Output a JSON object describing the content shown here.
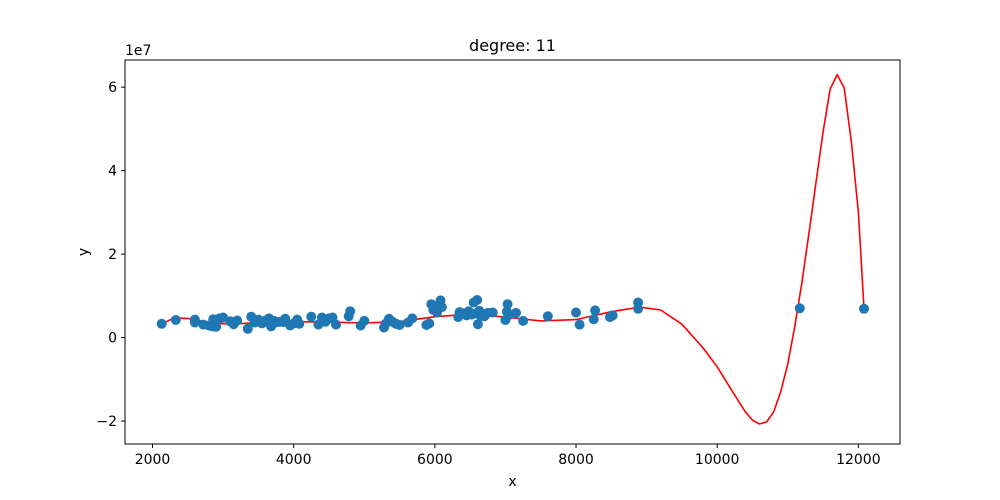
{
  "chart_data": {
    "type": "scatter",
    "title": "degree: 11",
    "xlabel": "x",
    "ylabel": "y",
    "y_multiplier_label": "1e7",
    "xlim": [
      1610,
      12590
    ],
    "ylim": [
      -25500000,
      66500000
    ],
    "x_ticks": [
      2000,
      4000,
      6000,
      8000,
      10000,
      12000
    ],
    "x_tick_labels": [
      "2000",
      "4000",
      "6000",
      "8000",
      "10000",
      "12000"
    ],
    "y_ticks": [
      -20000000,
      0,
      20000000,
      40000000,
      60000000
    ],
    "y_tick_labels": [
      "−2",
      "0",
      "2",
      "4",
      "6"
    ],
    "grid": false,
    "scatter_color": "#1f77b4",
    "line_color": "#ff0000",
    "points": [
      [
        2130,
        3300000
      ],
      [
        2330,
        4200000
      ],
      [
        2600,
        3600000
      ],
      [
        2600,
        4300000
      ],
      [
        2720,
        3100000
      ],
      [
        2800,
        2900000
      ],
      [
        2850,
        2700000
      ],
      [
        2860,
        4400000
      ],
      [
        2900,
        2600000
      ],
      [
        2950,
        4600000
      ],
      [
        3000,
        4800000
      ],
      [
        3100,
        3900000
      ],
      [
        3150,
        3200000
      ],
      [
        3200,
        4100000
      ],
      [
        3350,
        2100000
      ],
      [
        3400,
        5000000
      ],
      [
        3450,
        3600000
      ],
      [
        3500,
        4300000
      ],
      [
        3550,
        3400000
      ],
      [
        3600,
        4100000
      ],
      [
        3620,
        3700000
      ],
      [
        3650,
        4600000
      ],
      [
        3680,
        2700000
      ],
      [
        3700,
        3300000
      ],
      [
        3720,
        4000000
      ],
      [
        3750,
        3600000
      ],
      [
        3800,
        3800000
      ],
      [
        3850,
        3700000
      ],
      [
        3880,
        4500000
      ],
      [
        3950,
        2900000
      ],
      [
        4000,
        3400000
      ],
      [
        4050,
        4300000
      ],
      [
        4080,
        3300000
      ],
      [
        4250,
        5000000
      ],
      [
        4350,
        3100000
      ],
      [
        4400,
        4800000
      ],
      [
        4450,
        3800000
      ],
      [
        4500,
        4600000
      ],
      [
        4550,
        4800000
      ],
      [
        4600,
        3100000
      ],
      [
        4780,
        5100000
      ],
      [
        4800,
        6300000
      ],
      [
        4950,
        2900000
      ],
      [
        5000,
        4000000
      ],
      [
        5280,
        2400000
      ],
      [
        5300,
        3300000
      ],
      [
        5350,
        4500000
      ],
      [
        5400,
        3800000
      ],
      [
        5450,
        3300000
      ],
      [
        5500,
        3000000
      ],
      [
        5620,
        3600000
      ],
      [
        5680,
        4600000
      ],
      [
        5880,
        3000000
      ],
      [
        5920,
        3400000
      ],
      [
        5950,
        8000000
      ],
      [
        5980,
        6600000
      ],
      [
        6000,
        7400000
      ],
      [
        6030,
        6000000
      ],
      [
        6080,
        8900000
      ],
      [
        6100,
        7300000
      ],
      [
        6330,
        4900000
      ],
      [
        6350,
        6100000
      ],
      [
        6400,
        5800000
      ],
      [
        6450,
        5300000
      ],
      [
        6480,
        6300000
      ],
      [
        6520,
        5500000
      ],
      [
        6550,
        8400000
      ],
      [
        6580,
        5800000
      ],
      [
        6600,
        9000000
      ],
      [
        6610,
        3200000
      ],
      [
        6630,
        6400000
      ],
      [
        6650,
        5200000
      ],
      [
        6680,
        5600000
      ],
      [
        6700,
        5100000
      ],
      [
        6750,
        5900000
      ],
      [
        6820,
        6000000
      ],
      [
        7000,
        4200000
      ],
      [
        7020,
        6200000
      ],
      [
        7030,
        8000000
      ],
      [
        7050,
        5400000
      ],
      [
        7150,
        5900000
      ],
      [
        7250,
        4000000
      ],
      [
        7600,
        5100000
      ],
      [
        8000,
        6000000
      ],
      [
        8050,
        3100000
      ],
      [
        8250,
        4400000
      ],
      [
        8270,
        6500000
      ],
      [
        8480,
        4900000
      ],
      [
        8520,
        5300000
      ],
      [
        8880,
        6900000
      ],
      [
        8880,
        8400000
      ],
      [
        11170,
        7000000
      ],
      [
        12080,
        6900000
      ]
    ],
    "fit_line": [
      [
        2130,
        3200000
      ],
      [
        2300,
        4700000
      ],
      [
        2500,
        4600000
      ],
      [
        2700,
        3900000
      ],
      [
        2900,
        3400000
      ],
      [
        3100,
        3300000
      ],
      [
        3300,
        3400000
      ],
      [
        3600,
        3600000
      ],
      [
        4000,
        3800000
      ],
      [
        4500,
        3700000
      ],
      [
        5000,
        3500000
      ],
      [
        5500,
        3800000
      ],
      [
        6000,
        5000000
      ],
      [
        6500,
        5600000
      ],
      [
        7000,
        4900000
      ],
      [
        7500,
        4000000
      ],
      [
        8000,
        4300000
      ],
      [
        8500,
        6200000
      ],
      [
        8900,
        7300000
      ],
      [
        9200,
        6600000
      ],
      [
        9500,
        3200000
      ],
      [
        9800,
        -2500000
      ],
      [
        10000,
        -7000000
      ],
      [
        10200,
        -12500000
      ],
      [
        10400,
        -17800000
      ],
      [
        10500,
        -19800000
      ],
      [
        10600,
        -20700000
      ],
      [
        10700,
        -20200000
      ],
      [
        10800,
        -17800000
      ],
      [
        10900,
        -13000000
      ],
      [
        11000,
        -6300000
      ],
      [
        11100,
        2700000
      ],
      [
        11200,
        13200000
      ],
      [
        11300,
        24900000
      ],
      [
        11400,
        37200000
      ],
      [
        11500,
        49300000
      ],
      [
        11600,
        59500000
      ],
      [
        11700,
        63000000
      ],
      [
        11800,
        59800000
      ],
      [
        11900,
        47000000
      ],
      [
        12000,
        30000000
      ],
      [
        12080,
        6900000
      ]
    ]
  }
}
